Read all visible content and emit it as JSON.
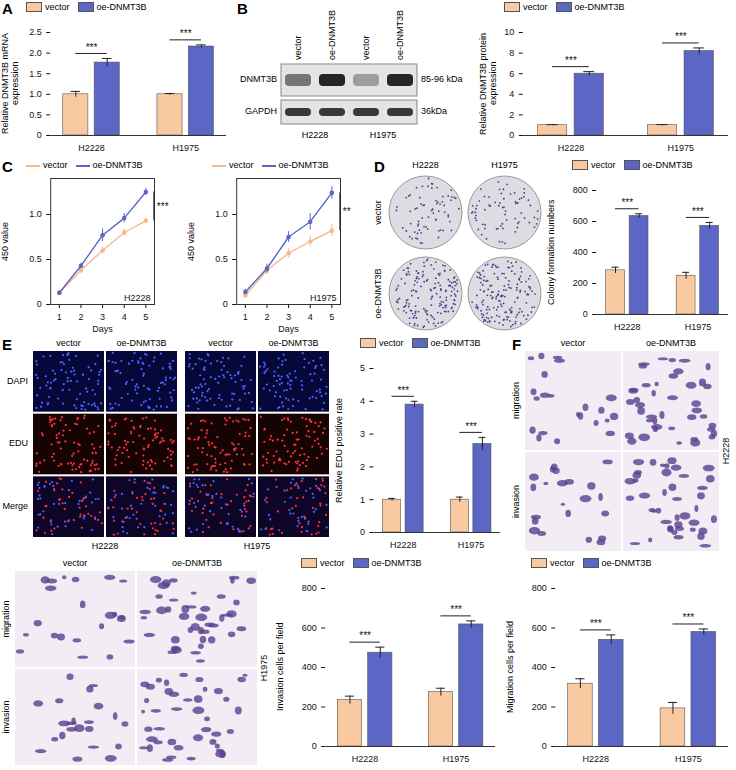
{
  "chart_data": [
    {
      "panel": "A",
      "type": "bar",
      "y_label": "Relative DNMT3B mRNA expression",
      "categories": [
        "H2228",
        "H1975"
      ],
      "series": [
        {
          "name": "vector",
          "color": "#f9c9a1",
          "values": [
            1.0,
            1.0
          ],
          "errors": [
            0.07,
            0.02
          ]
        },
        {
          "name": "oe-DNMT3B",
          "color": "#5b66c5",
          "values": [
            1.77,
            2.16
          ],
          "errors": [
            0.1,
            0.04
          ]
        }
      ],
      "significance": [
        "***",
        "***"
      ],
      "ylim": [
        0,
        2.5
      ],
      "yticks": [
        0,
        0.5,
        {
          "value": 1,
          "label": "1.0"
        },
        1.5,
        {
          "value": 2,
          "label": "2.0"
        },
        2.5
      ],
      "legend": "top"
    },
    {
      "type": "bar",
      "y_label": "Relative DNMT3B protein expression",
      "categories": [
        "H2228",
        "H1975"
      ],
      "series": [
        {
          "name": "vector",
          "color": "#f9c9a1",
          "values": [
            1,
            1
          ],
          "errors": [
            0.05,
            0.06
          ]
        },
        {
          "name": "oe-DNMT3B",
          "color": "#5b66c5",
          "values": [
            6.0,
            8.2
          ],
          "errors": [
            0.2,
            0.3
          ]
        }
      ],
      "significance": [
        "***",
        "***"
      ],
      "ylim": [
        0,
        10
      ],
      "yticks": [
        0,
        2,
        4,
        6,
        8,
        10
      ],
      "legend": "top"
    },
    {
      "panel": "C",
      "type": "line",
      "x_label": "Days",
      "y_label": "450 value",
      "cell_line": "H2228",
      "x": [
        1,
        2,
        3,
        4,
        5
      ],
      "series": [
        {
          "name": "vector",
          "color": "#f5b98e",
          "marker": "circle",
          "values": [
            0.13,
            0.38,
            0.6,
            0.8,
            0.93
          ],
          "errors": [
            0.02,
            0.03,
            0.04,
            0.04,
            0.03
          ]
        },
        {
          "name": "oe-DNMT3B",
          "color": "#5b66c5",
          "marker": "circle",
          "values": [
            0.13,
            0.43,
            0.77,
            0.96,
            1.25
          ],
          "errors": [
            0.02,
            0.03,
            0.07,
            0.05,
            0.04
          ]
        }
      ],
      "significance": "***",
      "xlim": [
        0.6,
        5.4
      ],
      "xticks": [
        1,
        2,
        3,
        4,
        5
      ],
      "ylim": [
        0,
        1.4
      ],
      "yticks": [
        0,
        0.5,
        {
          "value": 1,
          "label": "1.0"
        }
      ],
      "legend": "top"
    },
    {
      "type": "line",
      "x_label": "Days",
      "y_label": "450 value",
      "cell_line": "H1975",
      "x": [
        1,
        2,
        3,
        4,
        5
      ],
      "series": [
        {
          "name": "vector",
          "color": "#f5b98e",
          "marker": "circle",
          "values": [
            0.1,
            0.38,
            0.57,
            0.7,
            0.82
          ],
          "errors": [
            0.03,
            0.05,
            0.05,
            0.06,
            0.07
          ]
        },
        {
          "name": "oe-DNMT3B",
          "color": "#5b66c5",
          "marker": "circle",
          "values": [
            0.14,
            0.4,
            0.75,
            0.92,
            1.24
          ],
          "errors": [
            0.03,
            0.05,
            0.06,
            0.09,
            0.07
          ]
        }
      ],
      "significance": "**",
      "xlim": [
        0.6,
        5.4
      ],
      "xticks": [
        1,
        2,
        3,
        4,
        5
      ],
      "ylim": [
        0,
        1.4
      ],
      "yticks": [
        0,
        0.5,
        {
          "value": 1,
          "label": "1.0"
        }
      ],
      "legend": "top"
    },
    {
      "type": "bar",
      "y_label": "Colony formation numbers",
      "categories": [
        "H2228",
        "H1975"
      ],
      "series": [
        {
          "name": "vector",
          "color": "#f9c9a1",
          "values": [
            285,
            250
          ],
          "errors": [
            20,
            22
          ]
        },
        {
          "name": "oe-DNMT3B",
          "color": "#5b66c5",
          "values": [
            635,
            572
          ],
          "errors": [
            15,
            22
          ]
        }
      ],
      "significance": [
        "***",
        "***"
      ],
      "ylim": [
        0,
        800
      ],
      "yticks": [
        0,
        200,
        400,
        600,
        800
      ],
      "legend": "top"
    },
    {
      "type": "bar",
      "y_label": "Relative EDU positive rate",
      "categories": [
        "H2228",
        "H1975"
      ],
      "series": [
        {
          "name": "vector",
          "color": "#f9c9a1",
          "values": [
            1,
            1
          ],
          "errors": [
            0.04,
            0.08
          ]
        },
        {
          "name": "oe-DNMT3B",
          "color": "#5b66c5",
          "values": [
            3.9,
            2.7
          ],
          "errors": [
            0.1,
            0.2
          ]
        }
      ],
      "significance": [
        "***",
        "***"
      ],
      "ylim": [
        0,
        5
      ],
      "yticks": [
        0,
        1,
        2,
        3,
        4,
        5
      ],
      "legend": "top"
    },
    {
      "type": "bar",
      "y_label": "Invasion cells per field",
      "categories": [
        "H2228",
        "H1975"
      ],
      "series": [
        {
          "name": "vector",
          "color": "#f9c9a1",
          "values": [
            235,
            275
          ],
          "errors": [
            20,
            20
          ]
        },
        {
          "name": "oe-DNMT3B",
          "color": "#5b66c5",
          "values": [
            475,
            618
          ],
          "errors": [
            28,
            18
          ]
        }
      ],
      "significance": [
        "***",
        "***"
      ],
      "ylim": [
        0,
        800
      ],
      "yticks": [
        0,
        200,
        400,
        600,
        800
      ],
      "legend": "top"
    },
    {
      "type": "bar",
      "y_label": "Migration cells per field",
      "categories": [
        "H2228",
        "H1975"
      ],
      "series": [
        {
          "name": "vector",
          "color": "#f9c9a1",
          "values": [
            318,
            193
          ],
          "errors": [
            25,
            30
          ]
        },
        {
          "name": "oe-DNMT3B",
          "color": "#5b66c5",
          "values": [
            540,
            580
          ],
          "errors": [
            25,
            15
          ]
        }
      ],
      "significance": [
        "***",
        "***"
      ],
      "ylim": [
        0,
        800
      ],
      "yticks": [
        0,
        200,
        400,
        600,
        800
      ],
      "legend": "top"
    }
  ],
  "images": [
    {
      "type": "blot",
      "panel": "B",
      "lanes": [
        "vector",
        "oe-DNMT3B",
        "vector",
        "oe-DNMT3B"
      ],
      "groups": [
        "H2228",
        "H1975"
      ],
      "proteins": [
        {
          "name": "DNMT3B",
          "size": "85-96 kDa"
        },
        {
          "name": "GAPDH",
          "size": "36kDa"
        }
      ]
    },
    {
      "type": "colony",
      "panel": "D",
      "columns": [
        "H2228",
        "H1975"
      ],
      "rows": [
        "vector",
        "oe-DNMT3B"
      ]
    },
    {
      "type": "fluorescence",
      "panel": "E",
      "rows": [
        "DAPI",
        "EDU",
        "Merge"
      ],
      "groups": [
        {
          "cell_line": "H2228",
          "columns": [
            "vector",
            "oe-DNMT3B"
          ]
        },
        {
          "cell_line": "H1975",
          "columns": [
            "vector",
            "oe-DNMT3B"
          ]
        }
      ]
    },
    {
      "type": "transwell",
      "panel": "F",
      "cell_line": "H2228",
      "columns": [
        "vector",
        "oe-DNMT3B"
      ],
      "rows": [
        "migration",
        "invasion"
      ]
    },
    {
      "type": "transwell",
      "cell_line": "H1975",
      "columns": [
        "vector",
        "oe-DNMT3B"
      ],
      "rows": [
        "migration",
        "invasion"
      ]
    }
  ]
}
